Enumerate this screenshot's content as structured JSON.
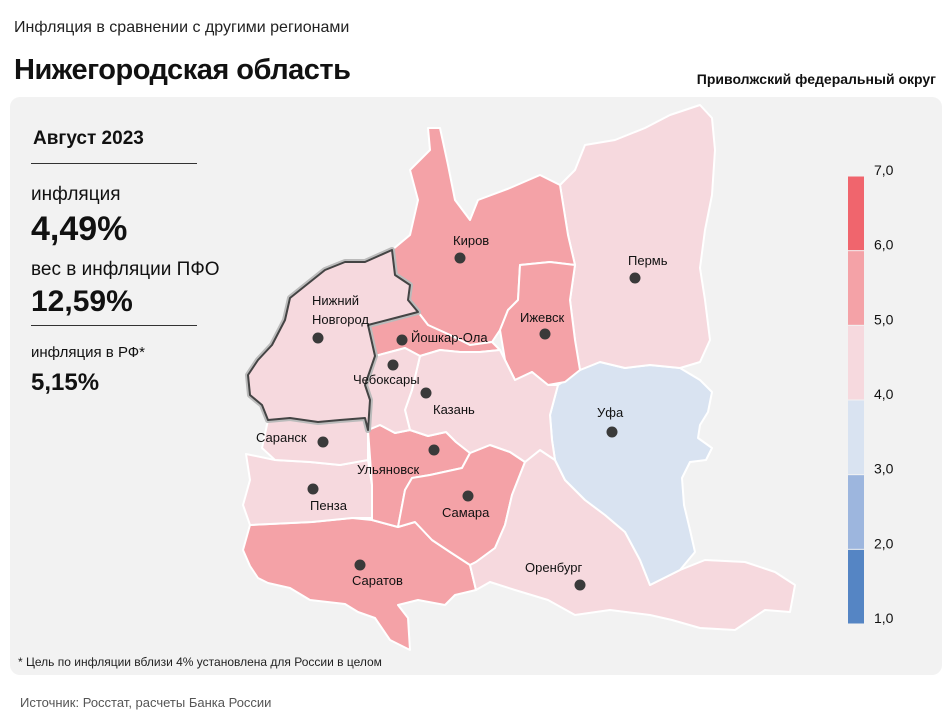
{
  "header": {
    "supertitle": "Инфляция в сравнении с другими регионами",
    "title": "Нижегородская область",
    "district": "Приволжский федеральный округ"
  },
  "info": {
    "period": "Август 2023",
    "inflation_label": "инфляция",
    "inflation_value": "4,49%",
    "weight_label": "вес в инфляции ПФО",
    "weight_value": "12,59%",
    "rf_label": "инфляция в РФ*",
    "rf_value": "5,15%"
  },
  "footnote": "* Цель по инфляции вблизи 4% установлена для России в целом",
  "source": "Источник: Росстат, расчеты Банка России",
  "legend": {
    "ticks": [
      "1,0",
      "2,0",
      "3,0",
      "4,0",
      "5,0",
      "6,0",
      "7,0"
    ],
    "colors": [
      "#5585c4",
      "#9db6de",
      "#d9e3f1",
      "#f6d9de",
      "#f4a2a7",
      "#f0656d"
    ]
  },
  "regions": [
    {
      "name": "Нижний Новгород",
      "label_lines": [
        "Нижний",
        "Новгород"
      ],
      "color": "#f6d9de",
      "highlight": true
    },
    {
      "name": "Киров",
      "label_lines": [
        "Киров"
      ],
      "color": "#f4a2a7"
    },
    {
      "name": "Пермь",
      "label_lines": [
        "Пермь"
      ],
      "color": "#f6d9de"
    },
    {
      "name": "Ижевск",
      "label_lines": [
        "Ижевск"
      ],
      "color": "#f4a2a7"
    },
    {
      "name": "Йошкар-Ола",
      "label_lines": [
        "Йошкар-Ола"
      ],
      "color": "#f4a2a7"
    },
    {
      "name": "Чебоксары",
      "label_lines": [
        "Чебоксары"
      ],
      "color": "#f6d9de"
    },
    {
      "name": "Казань",
      "label_lines": [
        "Казань"
      ],
      "color": "#f6d9de"
    },
    {
      "name": "Уфа",
      "label_lines": [
        "Уфа"
      ],
      "color": "#d9e3f1"
    },
    {
      "name": "Саранск",
      "label_lines": [
        "Саранск"
      ],
      "color": "#f6d9de"
    },
    {
      "name": "Ульяновск",
      "label_lines": [
        "Ульяновск"
      ],
      "color": "#f4a2a7"
    },
    {
      "name": "Пенза",
      "label_lines": [
        "Пенза"
      ],
      "color": "#f6d9de"
    },
    {
      "name": "Самара",
      "label_lines": [
        "Самара"
      ],
      "color": "#f4a2a7"
    },
    {
      "name": "Саратов",
      "label_lines": [
        "Саратов"
      ],
      "color": "#f4a2a7"
    },
    {
      "name": "Оренбург",
      "label_lines": [
        "Оренбург"
      ],
      "color": "#f6d9de"
    }
  ]
}
